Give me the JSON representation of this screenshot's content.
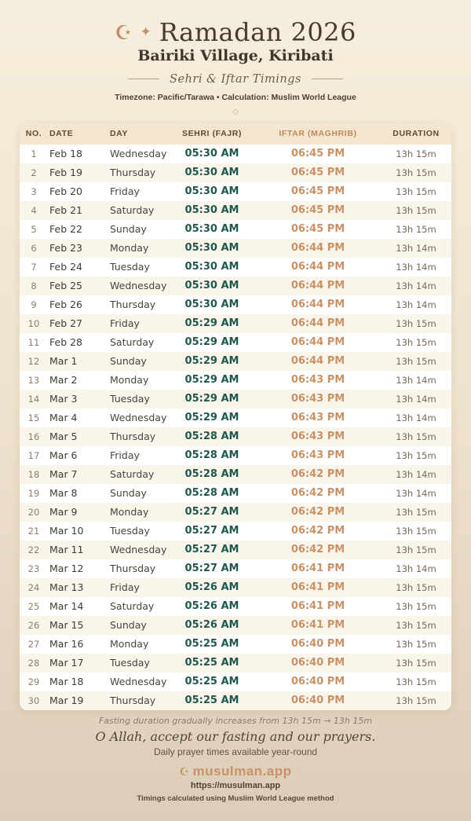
{
  "header": {
    "moon_icon": "☪",
    "star_icon": "✦",
    "title": "Ramadan 2026",
    "location": "Bairiki Village, Kiribati",
    "subtitle": "Sehri & Iftar Timings",
    "meta": "Timezone: Pacific/Tarawa • Calculation: Muslim World League",
    "ornament": "◇"
  },
  "table": {
    "columns": [
      "NO.",
      "DATE",
      "DAY",
      "SEHRI (FAJR)",
      "IFTAR (MAGHRIB)",
      "DURATION"
    ],
    "rows": [
      [
        "1",
        "Feb 18",
        "Wednesday",
        "05:30 AM",
        "06:45 PM",
        "13h 15m"
      ],
      [
        "2",
        "Feb 19",
        "Thursday",
        "05:30 AM",
        "06:45 PM",
        "13h 15m"
      ],
      [
        "3",
        "Feb 20",
        "Friday",
        "05:30 AM",
        "06:45 PM",
        "13h 15m"
      ],
      [
        "4",
        "Feb 21",
        "Saturday",
        "05:30 AM",
        "06:45 PM",
        "13h 15m"
      ],
      [
        "5",
        "Feb 22",
        "Sunday",
        "05:30 AM",
        "06:45 PM",
        "13h 15m"
      ],
      [
        "6",
        "Feb 23",
        "Monday",
        "05:30 AM",
        "06:44 PM",
        "13h 14m"
      ],
      [
        "7",
        "Feb 24",
        "Tuesday",
        "05:30 AM",
        "06:44 PM",
        "13h 14m"
      ],
      [
        "8",
        "Feb 25",
        "Wednesday",
        "05:30 AM",
        "06:44 PM",
        "13h 14m"
      ],
      [
        "9",
        "Feb 26",
        "Thursday",
        "05:30 AM",
        "06:44 PM",
        "13h 14m"
      ],
      [
        "10",
        "Feb 27",
        "Friday",
        "05:29 AM",
        "06:44 PM",
        "13h 15m"
      ],
      [
        "11",
        "Feb 28",
        "Saturday",
        "05:29 AM",
        "06:44 PM",
        "13h 15m"
      ],
      [
        "12",
        "Mar 1",
        "Sunday",
        "05:29 AM",
        "06:44 PM",
        "13h 15m"
      ],
      [
        "13",
        "Mar 2",
        "Monday",
        "05:29 AM",
        "06:43 PM",
        "13h 14m"
      ],
      [
        "14",
        "Mar 3",
        "Tuesday",
        "05:29 AM",
        "06:43 PM",
        "13h 14m"
      ],
      [
        "15",
        "Mar 4",
        "Wednesday",
        "05:29 AM",
        "06:43 PM",
        "13h 14m"
      ],
      [
        "16",
        "Mar 5",
        "Thursday",
        "05:28 AM",
        "06:43 PM",
        "13h 15m"
      ],
      [
        "17",
        "Mar 6",
        "Friday",
        "05:28 AM",
        "06:43 PM",
        "13h 15m"
      ],
      [
        "18",
        "Mar 7",
        "Saturday",
        "05:28 AM",
        "06:42 PM",
        "13h 14m"
      ],
      [
        "19",
        "Mar 8",
        "Sunday",
        "05:28 AM",
        "06:42 PM",
        "13h 14m"
      ],
      [
        "20",
        "Mar 9",
        "Monday",
        "05:27 AM",
        "06:42 PM",
        "13h 15m"
      ],
      [
        "21",
        "Mar 10",
        "Tuesday",
        "05:27 AM",
        "06:42 PM",
        "13h 15m"
      ],
      [
        "22",
        "Mar 11",
        "Wednesday",
        "05:27 AM",
        "06:42 PM",
        "13h 15m"
      ],
      [
        "23",
        "Mar 12",
        "Thursday",
        "05:27 AM",
        "06:41 PM",
        "13h 14m"
      ],
      [
        "24",
        "Mar 13",
        "Friday",
        "05:26 AM",
        "06:41 PM",
        "13h 15m"
      ],
      [
        "25",
        "Mar 14",
        "Saturday",
        "05:26 AM",
        "06:41 PM",
        "13h 15m"
      ],
      [
        "26",
        "Mar 15",
        "Sunday",
        "05:26 AM",
        "06:41 PM",
        "13h 15m"
      ],
      [
        "27",
        "Mar 16",
        "Monday",
        "05:25 AM",
        "06:40 PM",
        "13h 15m"
      ],
      [
        "28",
        "Mar 17",
        "Tuesday",
        "05:25 AM",
        "06:40 PM",
        "13h 15m"
      ],
      [
        "29",
        "Mar 18",
        "Wednesday",
        "05:25 AM",
        "06:40 PM",
        "13h 15m"
      ],
      [
        "30",
        "Mar 19",
        "Thursday",
        "05:25 AM",
        "06:40 PM",
        "13h 15m"
      ]
    ]
  },
  "footer": {
    "duration_note": "Fasting duration gradually increases from 13h 15m → 13h 15m",
    "dua": "O Allah, accept our fasting and our prayers.",
    "availability": "Daily prayer times available year-round",
    "brand_icon": "☪",
    "brand": "musulman.app",
    "url": "https://musulman.app",
    "method_note": "Timings calculated using Muslim World League method"
  },
  "colors": {
    "accent_tan": "#c9916a",
    "sehri_teal": "#1f584e",
    "header_band": "#f4e5ce",
    "background_top": "#f6eedd",
    "background_bottom": "#dccdb8",
    "title_brown": "#4a3a2b"
  }
}
